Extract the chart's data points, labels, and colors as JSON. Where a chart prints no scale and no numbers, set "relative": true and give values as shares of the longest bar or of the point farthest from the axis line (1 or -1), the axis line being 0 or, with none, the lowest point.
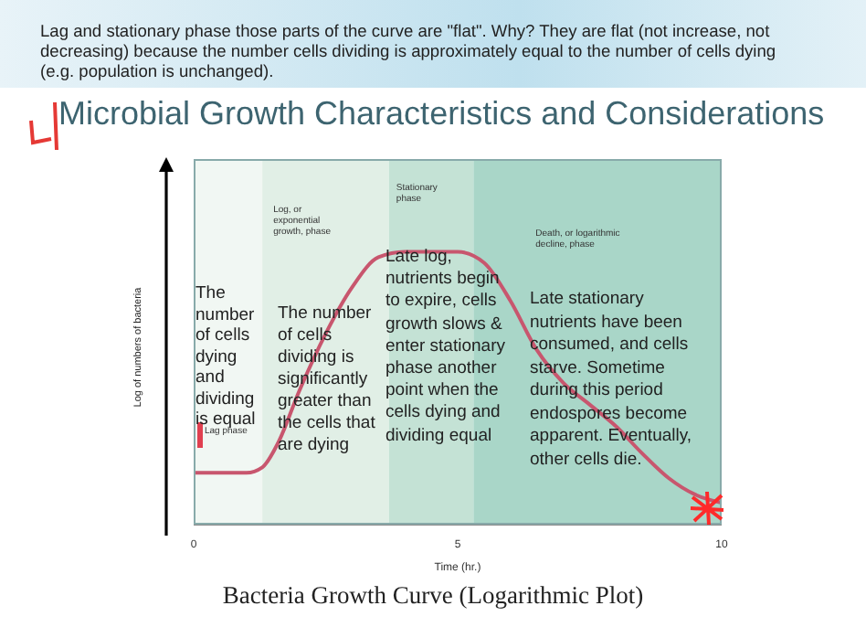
{
  "chart_data": {
    "type": "line",
    "title": "Microbial Growth Characteristics and Considerations",
    "xlabel": "Time (hr.)",
    "ylabel": "Log of numbers of bacteria",
    "x": [
      0,
      1,
      1.3,
      1.6,
      2,
      2.5,
      3,
      3.5,
      4,
      5,
      5.5,
      6,
      6.5,
      7,
      7.5,
      8,
      8.5,
      9,
      9.5,
      10
    ],
    "series": [
      {
        "color": "#c8566e",
        "values": [
          0.19,
          0.19,
          0.21,
          0.3,
          0.49,
          0.7,
          0.87,
          0.98,
          1,
          1,
          0.96,
          0.82,
          0.64,
          0.52,
          0.44,
          0.36,
          0.26,
          0.17,
          0.11,
          0.08
        ]
      }
    ],
    "relative": true,
    "marker": "none",
    "line_style": "solid",
    "xlim": [
      0,
      10
    ],
    "xticks": [
      0,
      5,
      10
    ],
    "tick_labels": "x",
    "bands": [
      {
        "axis": "x",
        "from": 0,
        "to": 1.3,
        "label": "Lag phase",
        "color": "#f1f7f3"
      },
      {
        "axis": "x",
        "from": 1.3,
        "to": 3.7,
        "label": "Log, or exponential growth, phase",
        "color": "#e1efe6"
      },
      {
        "axis": "x",
        "from": 3.7,
        "to": 5.3,
        "label": "Stationary phase",
        "color": "#c4e2d5"
      },
      {
        "axis": "x",
        "from": 5.3,
        "to": 10,
        "label": "Death, or logarithmic decline, phase",
        "color": "#a9d6c8"
      }
    ],
    "annotations": [
      "Lag and stationary phase those parts of the curve are \"flat\". Why? They are flat (not increase, not decreasing) because the number cells dividing is approximately equal to the number of cells dying (e.g. population is unchanged).",
      "The number of cells dying and dividing is equal",
      "The number of cells dividing is significantly greater than the cells that are dying",
      "Late log, nutrients begin to expire, cells growth slows & enter stationary phase another point when the cells dying and dividing equal",
      "Late stationary nutrients have been consumed, and cells starve. Sometime during this period endospores become apparent. Eventually, other cells die.",
      "Bacteria Growth Curve (Logarithmic Plot)"
    ]
  }
}
